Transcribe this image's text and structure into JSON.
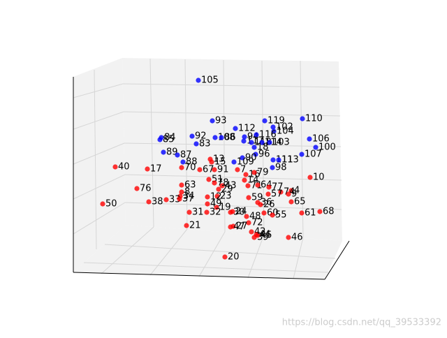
{
  "chart_data": {
    "type": "scatter3d",
    "xlim": [
      0,
      640
    ],
    "ylim": [
      480,
      0
    ],
    "series": [
      {
        "color": "#0000ff",
        "labels": [
          105,
          93,
          112,
          119,
          110,
          102,
          104,
          92,
          108,
          86,
          84,
          85,
          94,
          116,
          117,
          118,
          114,
          103,
          83,
          106,
          100,
          18,
          96,
          107,
          89,
          87,
          90,
          109,
          111,
          113,
          98,
          88
        ],
        "x": [
          284,
          304,
          337,
          379,
          433,
          391,
          392,
          275,
          308,
          317,
          231,
          229,
          350,
          367,
          349,
          360,
          375,
          386,
          281,
          443,
          452,
          364,
          366,
          432,
          234,
          254,
          347,
          335,
          391,
          399,
          390,
          262
        ],
        "y": [
          115,
          173,
          184,
          173,
          170,
          182,
          188,
          195,
          197,
          197,
          197,
          200,
          196,
          193,
          202,
          204,
          204,
          204,
          206,
          199,
          211,
          211,
          221,
          221,
          218,
          222,
          226,
          232,
          229,
          229,
          240,
          232
        ]
      },
      {
        "color": "#ff0000",
        "labels": [
          40,
          17,
          70,
          67,
          91,
          13,
          15,
          7,
          16,
          79,
          10,
          51,
          14,
          78,
          63,
          43,
          71,
          64,
          77,
          4,
          74,
          29,
          76,
          8,
          23,
          59,
          57,
          12,
          34,
          33,
          37,
          38,
          50,
          49,
          9,
          65,
          19,
          36,
          26,
          24,
          61,
          68,
          31,
          32,
          30,
          60,
          55,
          48,
          72,
          21,
          27,
          47,
          42,
          44,
          45,
          39,
          46,
          20
        ],
        "x": [
          165,
          211,
          260,
          286,
          307,
          301,
          303,
          340,
          352,
          364,
          444,
          299,
          350,
          307,
          260,
          318,
          355,
          369,
          385,
          417,
          402,
          313,
          196,
          260,
          311,
          356,
          384,
          297,
          258,
          238,
          257,
          213,
          147,
          297,
          413,
          417,
          310,
          369,
          373,
          333,
          432,
          458,
          271,
          296,
          330,
          378,
          390,
          353,
          356,
          267,
          334,
          330,
          360,
          367,
          369,
          364,
          413,
          322
        ],
        "y": [
          239,
          242,
          240,
          243,
          243,
          228,
          232,
          243,
          250,
          247,
          254,
          257,
          258,
          262,
          265,
          266,
          266,
          265,
          268,
          273,
          275,
          271,
          270,
          275,
          281,
          283,
          278,
          282,
          281,
          286,
          285,
          289,
          292,
          292,
          278,
          289,
          297,
          290,
          293,
          303,
          305,
          303,
          304,
          304,
          304,
          305,
          308,
          310,
          319,
          323,
          324,
          325,
          332,
          336,
          337,
          340,
          340,
          368
        ]
      }
    ],
    "watermark": "https://blog.csdn.net/qq_39533392"
  }
}
